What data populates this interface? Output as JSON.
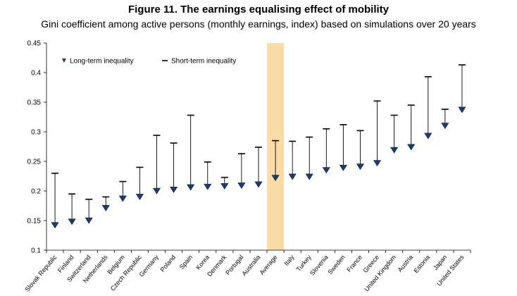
{
  "chart_data": {
    "type": "range",
    "title": "Figure 11. The earnings equalising effect of mobility",
    "subtitle": "Gini coefficient among active persons (monthly earnings, index) based on simulations over 20 years",
    "ylim": [
      0.1,
      0.45
    ],
    "yticks": [
      "0.45",
      "0.4",
      "0.35",
      "0.3",
      "0.25",
      "0.2",
      "0.15",
      "0.1"
    ],
    "highlight_category": "Average",
    "highlight_color": "#fbdca8",
    "marker_color": "#1f3c66",
    "legend": {
      "long_term": "Long-term inequality",
      "short_term": "Short-term inequality",
      "placement": "top-left"
    },
    "categories": [
      "Slovak Republic",
      "Finland",
      "Switzerland",
      "Netherlands",
      "Belgium",
      "Czech Republic",
      "Germany",
      "Poland",
      "Spain",
      "Korea",
      "Denmark",
      "Portugal",
      "Australia",
      "Average",
      "Italy",
      "Turkey",
      "Slovenia",
      "Sweden",
      "France",
      "Greece",
      "United Kingdom",
      "Austria",
      "Estonia",
      "Japan",
      "United States"
    ],
    "series": [
      {
        "name": "Long-term inequality",
        "values": [
          0.142,
          0.148,
          0.15,
          0.171,
          0.187,
          0.19,
          0.2,
          0.202,
          0.206,
          0.207,
          0.208,
          0.209,
          0.211,
          0.222,
          0.224,
          0.224,
          0.235,
          0.239,
          0.241,
          0.247,
          0.269,
          0.274,
          0.293,
          0.31,
          0.337
        ]
      },
      {
        "name": "Short-term inequality",
        "values": [
          0.23,
          0.195,
          0.186,
          0.19,
          0.216,
          0.24,
          0.294,
          0.281,
          0.328,
          0.249,
          0.223,
          0.263,
          0.274,
          0.285,
          0.284,
          0.291,
          0.305,
          0.312,
          0.302,
          0.352,
          0.328,
          0.345,
          0.393,
          0.338,
          0.413
        ]
      }
    ]
  }
}
